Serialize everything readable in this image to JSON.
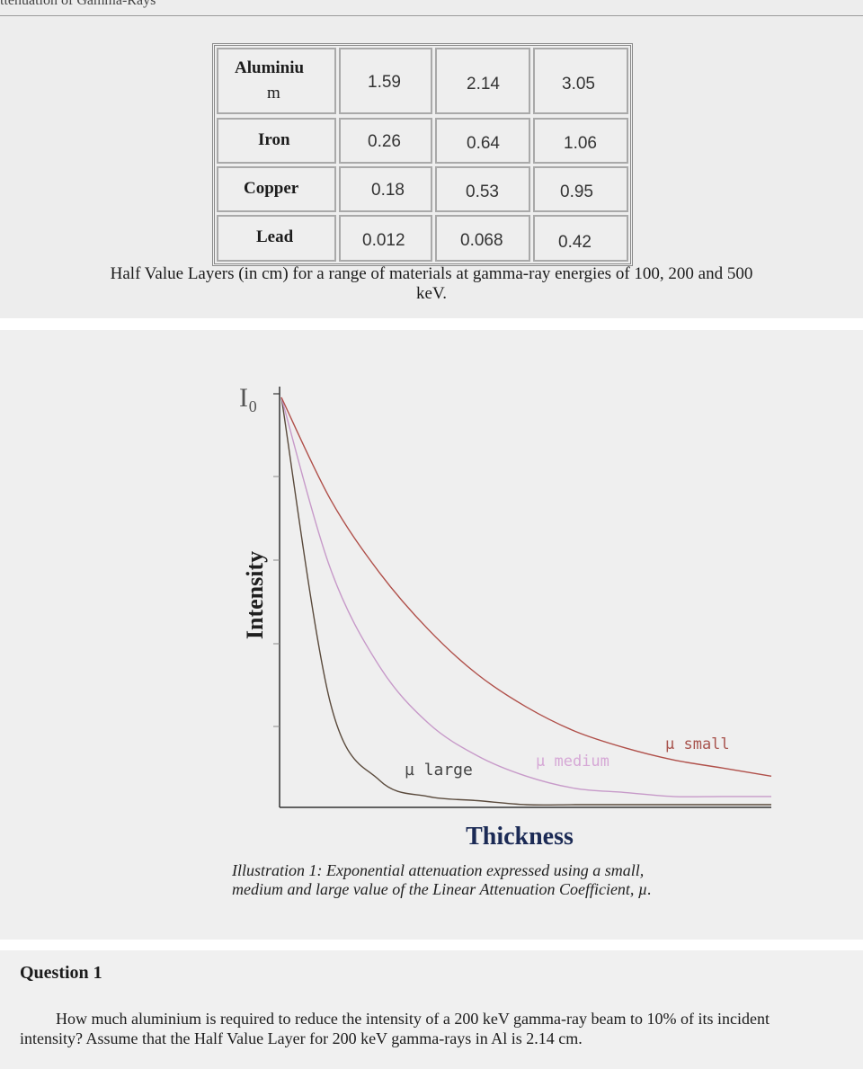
{
  "header": {
    "title_fragment": "ttenuation of Gamma-Rays"
  },
  "table": {
    "rows": [
      {
        "material_lines": [
          "Aluminiu",
          "m"
        ],
        "values": [
          "1.59",
          "2.14",
          "3.05"
        ]
      },
      {
        "material_lines": [
          "Iron"
        ],
        "values": [
          "0.26",
          "0.64",
          "1.06"
        ]
      },
      {
        "material_lines": [
          "Copper"
        ],
        "values": [
          "0.18",
          "0.53",
          "0.95"
        ]
      },
      {
        "material_lines": [
          "Lead"
        ],
        "values": [
          "0.012",
          "0.068",
          "0.42"
        ]
      }
    ],
    "caption_line1": "Half Value Layers (in cm) for a range of materials at gamma-ray energies of 100, 200 and 500",
    "caption_line2": "keV."
  },
  "chart_data": {
    "type": "line",
    "x": [
      0,
      1,
      2,
      3,
      4,
      5,
      6,
      7,
      8,
      9,
      10
    ],
    "series": [
      {
        "name": "µ large",
        "values": [
          1.0,
          0.25,
          0.06,
          0.02,
          0.01,
          0.0,
          0.0,
          0.0,
          0.0,
          0.0,
          0.0
        ]
      },
      {
        "name": "µ medium",
        "values": [
          1.0,
          0.58,
          0.34,
          0.2,
          0.12,
          0.07,
          0.04,
          0.03,
          0.02,
          0.02,
          0.02
        ]
      },
      {
        "name": "µ small",
        "values": [
          1.0,
          0.75,
          0.57,
          0.43,
          0.32,
          0.24,
          0.18,
          0.14,
          0.11,
          0.09,
          0.07
        ]
      }
    ],
    "ylabel": "Intensity",
    "xlabel": "Thickness",
    "y_top_label": "I₀",
    "series_colors": [
      "#5a4a3c",
      "#c79ac9",
      "#b0504a"
    ],
    "caption_line1": "Illustration 1: Exponential attenuation expressed using a small,",
    "caption_line2": "medium and large value of the Linear Attenuation Coefficient, µ."
  },
  "question": {
    "title": "Question 1",
    "text": "How much aluminium is required to reduce the intensity of a 200 keV gamma-ray beam to 10% of its incident intensity? Assume that the Half Value Layer for 200 keV gamma-rays in Al is 2.14 cm."
  }
}
